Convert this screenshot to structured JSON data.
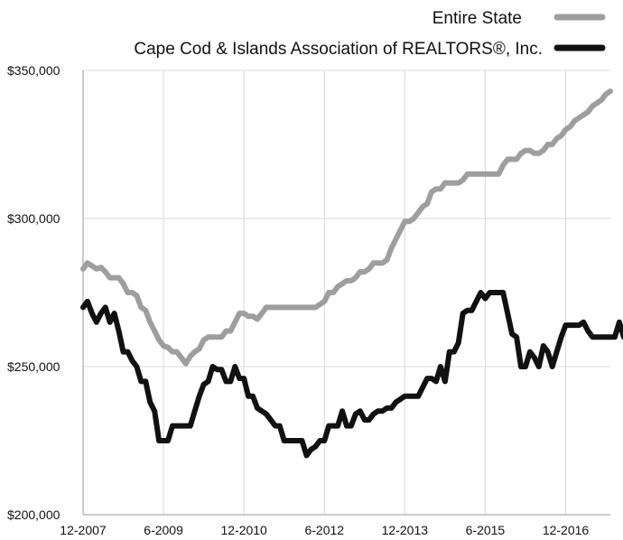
{
  "chart_data": {
    "type": "line",
    "title": "",
    "xlabel": "",
    "ylabel": "",
    "ylim": [
      200000,
      350000
    ],
    "x_tick_labels": [
      "12-2007",
      "6-2009",
      "12-2010",
      "6-2012",
      "12-2013",
      "6-2015",
      "12-2016"
    ],
    "y_tick_labels": [
      "$200,000",
      "$250,000",
      "$300,000",
      "$350,000"
    ],
    "y_tick_values": [
      200000,
      250000,
      300000,
      350000
    ],
    "grid": true,
    "legend_position": "top-right",
    "x_start": "12-2007",
    "series": [
      {
        "name": "Entire State",
        "color": "#9e9e9e",
        "values": [
          283000,
          285000,
          284000,
          283000,
          283500,
          282000,
          280000,
          280000,
          280000,
          278000,
          275000,
          275000,
          274000,
          270000,
          269000,
          265000,
          262000,
          259000,
          257000,
          256500,
          255000,
          255000,
          253000,
          251000,
          253500,
          255000,
          256000,
          259000,
          260000,
          260000,
          260000,
          260000,
          262000,
          262000,
          265000,
          268000,
          268000,
          267000,
          267000,
          266000,
          268000,
          270000,
          270000,
          270000,
          270000,
          270000,
          270000,
          270000,
          270000,
          270000,
          270000,
          270000,
          270000,
          271000,
          272000,
          275000,
          275000,
          277000,
          278000,
          279000,
          279000,
          280000,
          282000,
          282000,
          283000,
          285000,
          285000,
          285000,
          286000,
          290000,
          293000,
          296000,
          299000,
          299000,
          300000,
          302000,
          304000,
          305000,
          309000,
          310000,
          310000,
          312000,
          312000,
          312000,
          312000,
          313000,
          315000,
          315000,
          315000,
          315000,
          315000,
          315000,
          315000,
          315000,
          318000,
          320000,
          320000,
          320000,
          322000,
          323000,
          323000,
          322000,
          322000,
          323000,
          325000,
          325000,
          327000,
          328000,
          330000,
          331000,
          333000,
          334000,
          335000,
          336000,
          338000,
          339000,
          340000,
          342000,
          343000
        ]
      },
      {
        "name": "Cape Cod & Islands Association of REALTORS®, Inc.",
        "color": "#111111",
        "values": [
          270000,
          272000,
          268000,
          265000,
          268000,
          270000,
          265000,
          268000,
          262000,
          255000,
          255000,
          252000,
          250000,
          245000,
          245000,
          238000,
          235000,
          225000,
          225000,
          225000,
          230000,
          230000,
          230000,
          230000,
          230000,
          235000,
          240000,
          244000,
          245000,
          250000,
          249000,
          249000,
          245000,
          245000,
          250000,
          246000,
          246000,
          240000,
          240000,
          236000,
          235000,
          234000,
          232000,
          230000,
          230000,
          225000,
          225000,
          225000,
          225000,
          225000,
          220000,
          222000,
          223000,
          225000,
          225000,
          230000,
          230000,
          230000,
          235000,
          230000,
          230000,
          234000,
          235000,
          232000,
          232000,
          234000,
          235000,
          235000,
          236000,
          236000,
          238000,
          239000,
          240000,
          240000,
          240000,
          240000,
          243000,
          246000,
          246000,
          245000,
          250000,
          245000,
          255000,
          255000,
          258000,
          268000,
          269000,
          269000,
          272000,
          275000,
          273000,
          275000,
          275000,
          275000,
          275000,
          268000,
          261000,
          260000,
          250000,
          250000,
          255000,
          253000,
          250000,
          257000,
          255000,
          250000,
          255000,
          260000,
          264000,
          264000,
          264000,
          264000,
          265000,
          262000,
          260000,
          260000,
          260000,
          260000,
          260000,
          260000,
          265000,
          260000
        ]
      }
    ]
  }
}
